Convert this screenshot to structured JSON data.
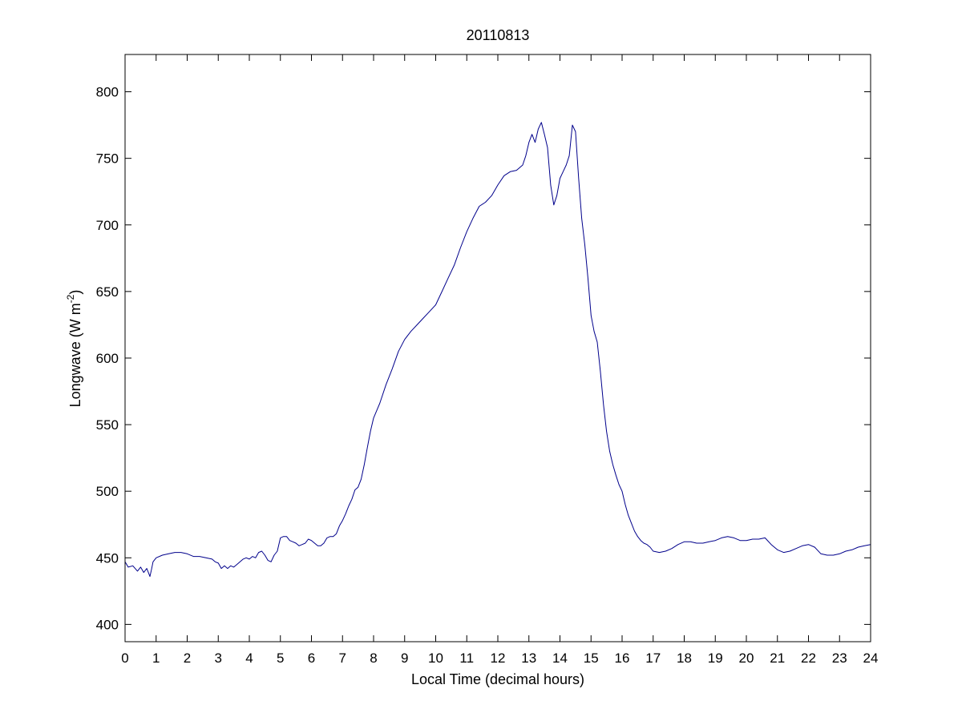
{
  "chart_data": {
    "type": "line",
    "title": "20110813",
    "xlabel": "Local Time (decimal hours)",
    "ylabel": {
      "text": "Longwave (W m",
      "superscript": "-2",
      "suffix": ")"
    },
    "xlim": [
      0,
      24
    ],
    "ylim": [
      387,
      828
    ],
    "xticks": [
      0,
      1,
      2,
      3,
      4,
      5,
      6,
      7,
      8,
      9,
      10,
      11,
      12,
      13,
      14,
      15,
      16,
      17,
      18,
      19,
      20,
      21,
      22,
      23,
      24
    ],
    "yticks": [
      400,
      450,
      500,
      550,
      600,
      650,
      700,
      750,
      800
    ],
    "grid": false,
    "box": true,
    "line_color": "#00008B",
    "series": [
      {
        "x": [
          0,
          0.1,
          0.25,
          0.4,
          0.5,
          0.6,
          0.7,
          0.8,
          0.85,
          0.9,
          1.0,
          1.2,
          1.4,
          1.6,
          1.8,
          2.0,
          2.2,
          2.4,
          2.6,
          2.8,
          2.9,
          3.0,
          3.1,
          3.2,
          3.3,
          3.4,
          3.5,
          3.6,
          3.7,
          3.8,
          3.9,
          4.0,
          4.1,
          4.2,
          4.3,
          4.4,
          4.5,
          4.6,
          4.7,
          4.8,
          4.9,
          5.0,
          5.1,
          5.2,
          5.3,
          5.4,
          5.5,
          5.6,
          5.7,
          5.8,
          5.9,
          6.0,
          6.1,
          6.2,
          6.3,
          6.4,
          6.5,
          6.6,
          6.7,
          6.8,
          6.9,
          7.0,
          7.1,
          7.2,
          7.3,
          7.4,
          7.5,
          7.6,
          7.7,
          7.8,
          7.9,
          8.0,
          8.2,
          8.4,
          8.6,
          8.8,
          9.0,
          9.2,
          9.4,
          9.6,
          9.8,
          10.0,
          10.2,
          10.4,
          10.6,
          10.8,
          11.0,
          11.2,
          11.4,
          11.6,
          11.8,
          12.0,
          12.2,
          12.4,
          12.6,
          12.8,
          12.9,
          13.0,
          13.1,
          13.2,
          13.3,
          13.4,
          13.5,
          13.6,
          13.7,
          13.8,
          13.9,
          14.0,
          14.1,
          14.2,
          14.3,
          14.4,
          14.5,
          14.6,
          14.7,
          14.8,
          14.9,
          15.0,
          15.1,
          15.2,
          15.3,
          15.4,
          15.5,
          15.6,
          15.7,
          15.8,
          15.9,
          16.0,
          16.1,
          16.2,
          16.3,
          16.4,
          16.5,
          16.6,
          16.7,
          16.8,
          16.9,
          17.0,
          17.2,
          17.4,
          17.6,
          17.8,
          18.0,
          18.2,
          18.4,
          18.6,
          18.8,
          19.0,
          19.2,
          19.4,
          19.6,
          19.8,
          20.0,
          20.2,
          20.4,
          20.6,
          20.8,
          21.0,
          21.2,
          21.4,
          21.6,
          21.8,
          22.0,
          22.2,
          22.4,
          22.6,
          22.8,
          23.0,
          23.2,
          23.4,
          23.6,
          23.8,
          24.0
        ],
        "y": [
          447,
          443,
          444,
          440,
          443,
          439,
          442,
          436,
          441,
          447,
          450,
          452,
          453,
          454,
          454,
          453,
          451,
          451,
          450,
          449,
          447,
          446,
          442,
          444,
          442,
          444,
          443,
          445,
          447,
          449,
          450,
          449,
          451,
          450,
          454,
          455,
          452,
          448,
          447,
          452,
          455,
          465,
          466,
          466,
          463,
          462,
          461,
          459,
          460,
          461,
          464,
          463,
          461,
          459,
          459,
          461,
          465,
          466,
          466,
          468,
          474,
          478,
          483,
          489,
          494,
          501,
          503,
          509,
          520,
          533,
          545,
          555,
          566,
          580,
          592,
          605,
          614,
          620,
          625,
          630,
          635,
          640,
          650,
          660,
          670,
          683,
          695,
          705,
          714,
          717,
          722,
          730,
          737,
          740,
          741,
          745,
          752,
          762,
          768,
          762,
          772,
          777,
          768,
          758,
          730,
          715,
          722,
          735,
          740,
          745,
          752,
          775,
          770,
          735,
          705,
          685,
          660,
          632,
          620,
          612,
          590,
          565,
          545,
          530,
          520,
          512,
          505,
          500,
          490,
          482,
          476,
          470,
          466,
          463,
          461,
          460,
          458,
          455,
          454,
          455,
          457,
          460,
          462,
          462,
          461,
          461,
          462,
          463,
          465,
          466,
          465,
          463,
          463,
          464,
          464,
          465,
          460,
          456,
          454,
          455,
          457,
          459,
          460,
          458,
          453,
          452,
          452,
          453,
          455,
          456,
          458,
          459,
          460
        ]
      }
    ]
  }
}
